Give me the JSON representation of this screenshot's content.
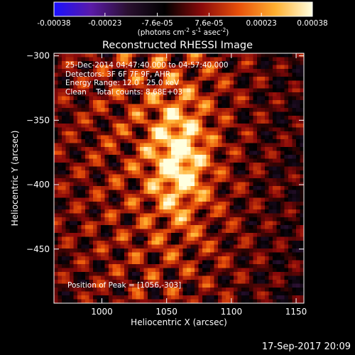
{
  "chart_data": {
    "type": "heatmap",
    "title": "Reconstructed RHESSI Image",
    "xlabel": "Heliocentric X (arcsec)",
    "ylabel": "Heliocentric Y (arcsec)",
    "xlim": [
      963,
      1156
    ],
    "ylim": [
      -492,
      -298
    ],
    "x_ticks": [
      1000,
      1050,
      1100,
      1150
    ],
    "y_ticks": [
      -300,
      -350,
      -400,
      -450
    ],
    "colorbar": {
      "range": [
        -0.00038,
        0.00038
      ],
      "tick_values": [
        -0.00038,
        -0.00023,
        -7.6e-05,
        7.6e-05,
        0.00023,
        0.00038
      ],
      "tick_labels": [
        "-0.00038",
        "-0.00023",
        "-7.6e-05",
        "7.6e-05",
        "0.00023",
        "0.00038"
      ],
      "unit_main": "(photons cm",
      "unit_sup1": "-2",
      "unit_mid1": " s",
      "unit_sup2": "-1",
      "unit_mid2": " asec",
      "unit_sup3": "-2",
      "unit_end": ")",
      "colors": [
        "#1a10ff",
        "#5a1aa8",
        "#2a1030",
        "#000000",
        "#8a0a0a",
        "#e8500a",
        "#ffb030",
        "#ffffe0"
      ]
    },
    "peak": {
      "x": 1056,
      "y": -303
    },
    "grid": false
  },
  "overlay": {
    "time_range": "25-Dec-2014 04:47:40.000 to 04:57:40.000",
    "detectors": "Detectors: 3F 6F 7F 9F, AHR",
    "energy_range": "Energy Range: 12.0 - 25.0 keV",
    "clean_label": "Clean",
    "total_counts": "Total counts: 8.68E+03",
    "peak_position": "Position of Peak = [1056,-303]"
  },
  "timestamp": "17-Sep-2017 20:09"
}
